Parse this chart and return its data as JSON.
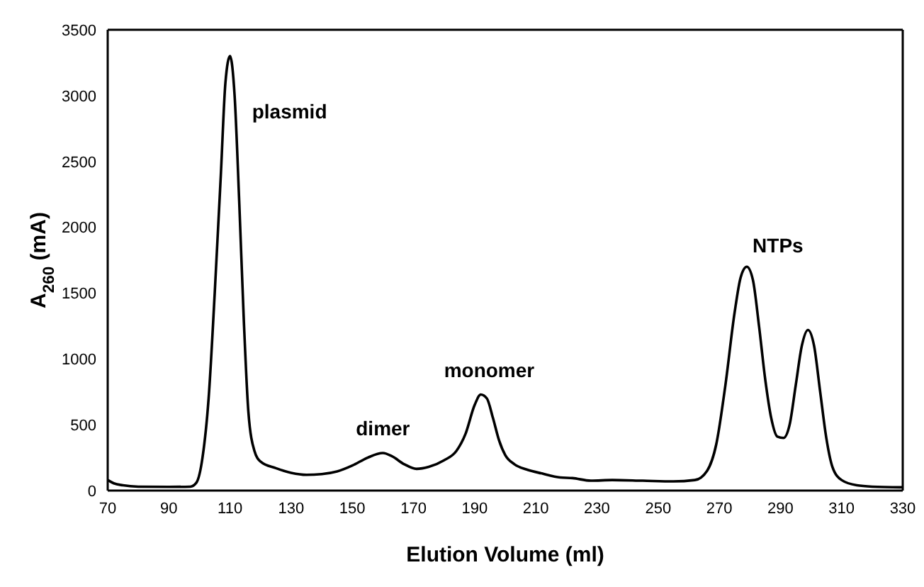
{
  "chart_data": {
    "type": "line",
    "xlabel": "Elution Volume (ml)",
    "ylabel": "A$_{260}$ (mA)",
    "xlim": [
      70,
      330
    ],
    "xticks": [
      70,
      90,
      110,
      130,
      150,
      170,
      190,
      210,
      230,
      250,
      270,
      290,
      310,
      330
    ],
    "ylim": [
      0,
      3500
    ],
    "yticks": [
      0,
      500,
      1000,
      1500,
      2000,
      2500,
      3000,
      3500
    ],
    "grid": false,
    "legend": false,
    "marker": "none",
    "line_style": "solid",
    "annotations": [
      {
        "text": "plasmid",
        "x": 110,
        "y": 3300
      },
      {
        "text": "dimer",
        "x": 160,
        "y": 285
      },
      {
        "text": "monomer",
        "x": 192,
        "y": 730
      },
      {
        "text": "NTPs",
        "x": 279,
        "y": 1700
      }
    ],
    "series": [
      {
        "color": "#000000",
        "x": [
          70,
          72,
          75,
          80,
          90,
          97,
          99,
          101,
          103,
          105,
          107,
          108.5,
          110,
          111.5,
          113,
          114.5,
          116,
          118,
          120,
          125,
          130,
          135,
          140,
          145,
          150,
          155,
          160,
          163,
          167,
          171,
          175,
          180,
          184,
          187,
          190,
          192,
          194,
          196,
          198,
          200,
          203,
          207,
          212,
          218,
          222,
          228,
          235,
          245,
          255,
          262,
          266,
          269,
          272,
          275,
          277,
          279,
          281,
          283,
          285,
          287,
          289,
          291,
          293,
          295,
          297,
          299,
          301,
          303,
          305,
          307,
          310,
          315,
          320,
          330
        ],
        "values": [
          80,
          55,
          40,
          30,
          28,
          30,
          60,
          250,
          700,
          1500,
          2400,
          3100,
          3300,
          3000,
          2200,
          1300,
          600,
          300,
          220,
          170,
          135,
          120,
          125,
          145,
          190,
          250,
          285,
          260,
          200,
          165,
          180,
          230,
          300,
          430,
          650,
          730,
          700,
          550,
          380,
          270,
          200,
          160,
          130,
          100,
          95,
          75,
          80,
          75,
          70,
          80,
          150,
          350,
          800,
          1350,
          1620,
          1700,
          1600,
          1250,
          850,
          550,
          410,
          400,
          500,
          800,
          1100,
          1220,
          1100,
          750,
          400,
          180,
          80,
          40,
          30,
          25
        ]
      }
    ]
  }
}
